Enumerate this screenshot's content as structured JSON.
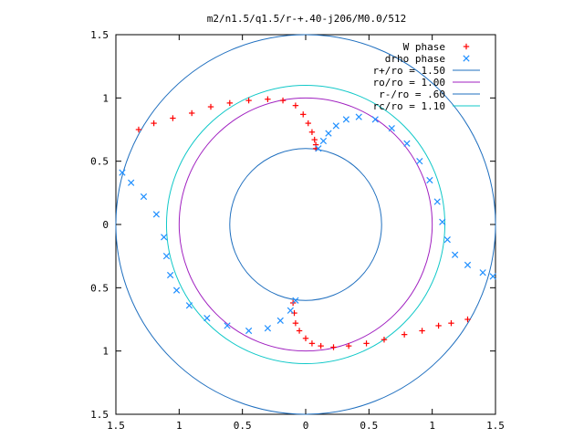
{
  "chart_data": {
    "type": "scatter",
    "title": "m2/n1.5/q1.5/r-+.40-j206/M0.0/512",
    "xlim": [
      -1.5,
      1.5
    ],
    "ylim": [
      -1.5,
      1.5
    ],
    "x_ticks": [
      -1.5,
      -1,
      -0.5,
      0,
      0.5,
      1,
      1.5
    ],
    "y_ticks": [
      -1.5,
      -1,
      -0.5,
      0,
      0.5,
      1,
      1.5
    ],
    "x_tick_labels": [
      "1.5",
      "1",
      "0.5",
      "0",
      "0.5",
      "1",
      "1.5"
    ],
    "y_tick_labels": [
      "1.5",
      "1",
      "0.5",
      "0",
      "0.5",
      "1",
      "1.5"
    ],
    "grid": false,
    "legend_position": "top-right",
    "circles": [
      {
        "name": "r+/ro = 1.50",
        "radius": 1.5,
        "color": "#1f6fbf"
      },
      {
        "name": "ro/ro = 1.00",
        "radius": 1.0,
        "color": "#a020c0"
      },
      {
        "name": "r-/ro = .60",
        "radius": 0.6,
        "color": "#1f6fbf"
      },
      {
        "name": "rc/ro = 1.10",
        "radius": 1.1,
        "color": "#10c8c8"
      }
    ],
    "series": [
      {
        "name": "W phase",
        "marker": "plus",
        "color": "#ff0000",
        "x": [
          -1.32,
          -1.2,
          -1.05,
          -0.9,
          -0.75,
          -0.6,
          -0.45,
          -0.3,
          -0.18,
          -0.08,
          -0.02,
          0.02,
          0.05,
          0.07,
          0.08,
          0.08,
          1.28,
          1.15,
          1.05,
          0.92,
          0.78,
          0.62,
          0.48,
          0.34,
          0.22,
          0.12,
          0.05,
          0.0,
          -0.05,
          -0.08,
          -0.09,
          -0.1
        ],
        "y": [
          0.75,
          0.8,
          0.84,
          0.88,
          0.93,
          0.96,
          0.98,
          0.99,
          0.98,
          0.94,
          0.87,
          0.8,
          0.73,
          0.67,
          0.63,
          0.6,
          -0.75,
          -0.78,
          -0.8,
          -0.84,
          -0.87,
          -0.91,
          -0.94,
          -0.96,
          -0.97,
          -0.96,
          -0.94,
          -0.9,
          -0.84,
          -0.78,
          -0.7,
          -0.62
        ]
      },
      {
        "name": "drho phase",
        "marker": "cross",
        "color": "#1f8fff",
        "x": [
          0.1,
          0.14,
          0.18,
          0.24,
          0.32,
          0.42,
          0.55,
          0.68,
          0.8,
          0.9,
          0.98,
          1.04,
          1.08,
          1.12,
          1.18,
          1.28,
          1.4,
          1.48,
          -1.45,
          -1.38,
          -1.28,
          -1.18,
          -1.12,
          -1.1,
          -1.07,
          -1.02,
          -0.92,
          -0.78,
          -0.62,
          -0.45,
          -0.3,
          -0.2,
          -0.12,
          -0.08
        ],
        "y": [
          0.6,
          0.66,
          0.72,
          0.78,
          0.83,
          0.85,
          0.83,
          0.76,
          0.64,
          0.5,
          0.35,
          0.18,
          0.02,
          -0.12,
          -0.24,
          -0.32,
          -0.38,
          -0.41,
          0.41,
          0.33,
          0.22,
          0.08,
          -0.1,
          -0.25,
          -0.4,
          -0.52,
          -0.64,
          -0.74,
          -0.8,
          -0.84,
          -0.82,
          -0.76,
          -0.68,
          -0.6
        ]
      }
    ]
  }
}
